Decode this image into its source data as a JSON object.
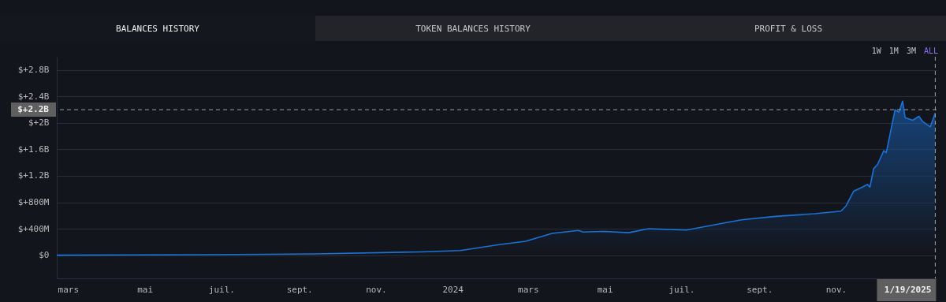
{
  "chart_data": {
    "type": "area",
    "annotations": [
      "BALANCES HISTORY",
      "TOKEN BALANCES HISTORY",
      "PROFIT & LOSS",
      "1W",
      "1M",
      "3M",
      "ALL"
    ],
    "x": [
      "2023-02-20",
      "2023-07-13",
      "2023-09-14",
      "2023-12-06",
      "2024-01-07",
      "2024-02-07",
      "2024-02-28",
      "2024-03-20",
      "2024-04-10",
      "2024-04-14",
      "2024-05-01",
      "2024-05-20",
      "2024-06-05",
      "2024-07-05",
      "2024-08-05",
      "2024-08-18",
      "2024-09-14",
      "2024-10-15",
      "2024-11-05",
      "2024-11-09",
      "2024-11-15",
      "2024-11-22",
      "2024-11-26",
      "2024-11-28",
      "2024-12-01",
      "2024-12-04",
      "2024-12-09",
      "2024-12-11",
      "2024-12-18",
      "2024-12-21",
      "2024-12-24",
      "2024-12-26",
      "2025-01-01",
      "2025-01-06",
      "2025-01-09",
      "2025-01-15",
      "2025-01-19"
    ],
    "series": [
      {
        "color": "#1a73d9",
        "values": [
          0,
          10000000,
          20000000,
          50000000,
          70000000,
          160000000,
          210000000,
          330000000,
          375000000,
          350000000,
          360000000,
          340000000,
          400000000,
          380000000,
          490000000,
          535000000,
          587000000,
          627000000,
          667000000,
          746000000,
          967000000,
          1030000000,
          1070000000,
          1030000000,
          1310000000,
          1370000000,
          1580000000,
          1550000000,
          2200000000,
          2160000000,
          2330000000,
          2080000000,
          2040000000,
          2100000000,
          2020000000,
          1940000000,
          2150000000
        ]
      }
    ],
    "xlim": [
      "2023-02-20",
      "2025-01-20"
    ],
    "xticks": [
      {
        "value": "2023-03-01",
        "label": "mars"
      },
      {
        "value": "2023-05-01",
        "label": "mai"
      },
      {
        "value": "2023-07-01",
        "label": "juil."
      },
      {
        "value": "2023-09-01",
        "label": "sept."
      },
      {
        "value": "2023-11-01",
        "label": "nov."
      },
      {
        "value": "2024-01-01",
        "label": "2024"
      },
      {
        "value": "2024-03-01",
        "label": "mars"
      },
      {
        "value": "2024-05-01",
        "label": "mai"
      },
      {
        "value": "2024-07-01",
        "label": "juil."
      },
      {
        "value": "2024-09-01",
        "label": "sept."
      },
      {
        "value": "2024-11-01",
        "label": "nov."
      }
    ],
    "ylim": [
      -350000000,
      3000000000
    ],
    "yticks": [
      {
        "value": 0,
        "label": "$0"
      },
      {
        "value": 400000000,
        "label": "$+400M"
      },
      {
        "value": 800000000,
        "label": "$+800M"
      },
      {
        "value": 1200000000,
        "label": "$+1.2B"
      },
      {
        "value": 1600000000,
        "label": "$+1.6B"
      },
      {
        "value": 2000000000,
        "label": "$+2B"
      },
      {
        "value": 2400000000,
        "label": "$+2.4B"
      },
      {
        "value": 2800000000,
        "label": "$+2.8B"
      }
    ],
    "grid": "y",
    "ref_lines": [
      {
        "axis": "y",
        "value": 2200000000,
        "label": "$+2.2B",
        "color": "#a0a0a0",
        "line_style": "dashed"
      },
      {
        "axis": "x",
        "value": "2025-01-19",
        "label": "1/19/2025",
        "color": "#a0a0a0",
        "line_style": "dashed"
      }
    ]
  }
}
